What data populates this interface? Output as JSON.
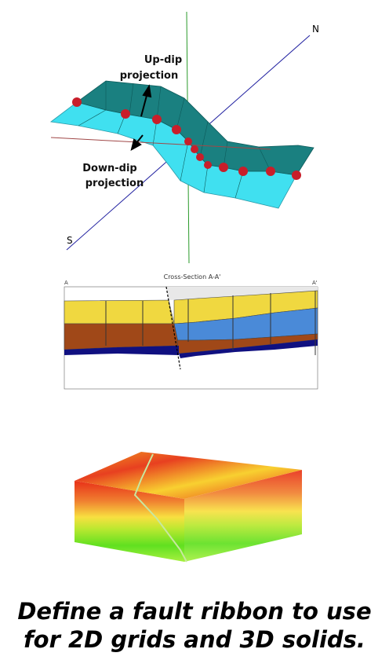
{
  "ribbon": {
    "north": "N",
    "south": "S",
    "up_dip": [
      "Up-dip",
      "projection"
    ],
    "down_dip": [
      "Down-dip",
      "projection"
    ]
  },
  "cross_section": {
    "title": "Cross-Section A-A'",
    "left_end": "A",
    "right_end": "A'"
  },
  "caption": [
    "Define a fault ribbon to use",
    "for 2D grids and 3D solids."
  ]
}
